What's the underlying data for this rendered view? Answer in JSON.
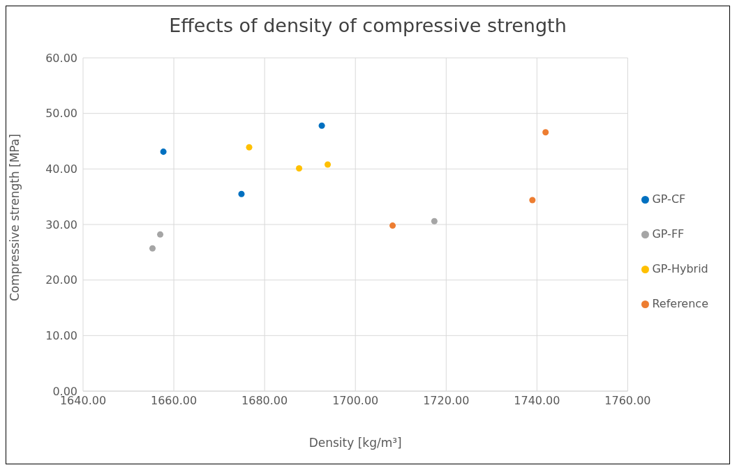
{
  "chart_data": {
    "type": "scatter",
    "title": "Effects of density of compressive strength",
    "xlabel": "Density [kg/m³]",
    "ylabel": "Compressive strength [MPa]",
    "xlim": [
      1640,
      1760
    ],
    "xticks": [
      {
        "value": 1640,
        "label": "1640.00"
      },
      {
        "value": 1660,
        "label": "1660.00"
      },
      {
        "value": 1680,
        "label": "1680.00"
      },
      {
        "value": 1700,
        "label": "1700.00"
      },
      {
        "value": 1720,
        "label": "1720.00"
      },
      {
        "value": 1740,
        "label": "1740.00"
      },
      {
        "value": 1760,
        "label": "1760.00"
      }
    ],
    "ylim": [
      0,
      60
    ],
    "yticks": [
      {
        "value": 0,
        "label": "0.00"
      },
      {
        "value": 10,
        "label": "10.00"
      },
      {
        "value": 20,
        "label": "20.00"
      },
      {
        "value": 30,
        "label": "30.00"
      },
      {
        "value": 40,
        "label": "40.00"
      },
      {
        "value": 50,
        "label": "50.00"
      },
      {
        "value": 60,
        "label": "60.00"
      }
    ],
    "grid": true,
    "legend": "right",
    "marker": "circle",
    "series": [
      {
        "name": "Reference",
        "color": "#ed7d31",
        "x": [
          1708.2,
          1739.0,
          1741.9
        ],
        "values": [
          29.8,
          34.4,
          46.6
        ]
      },
      {
        "name": "GP-CF",
        "color": "#0070c0",
        "x": [
          1657.7,
          1674.9,
          1692.6
        ],
        "values": [
          43.1,
          35.5,
          47.8
        ]
      },
      {
        "name": "GP-FF",
        "color": "#a5a5a5",
        "x": [
          1655.3,
          1657.0,
          1717.4
        ],
        "values": [
          25.7,
          28.2,
          30.6
        ]
      },
      {
        "name": "GP-Hybrid",
        "color": "#ffc000",
        "x": [
          1676.6,
          1687.6,
          1693.9
        ],
        "values": [
          43.9,
          40.1,
          40.8
        ]
      }
    ]
  }
}
